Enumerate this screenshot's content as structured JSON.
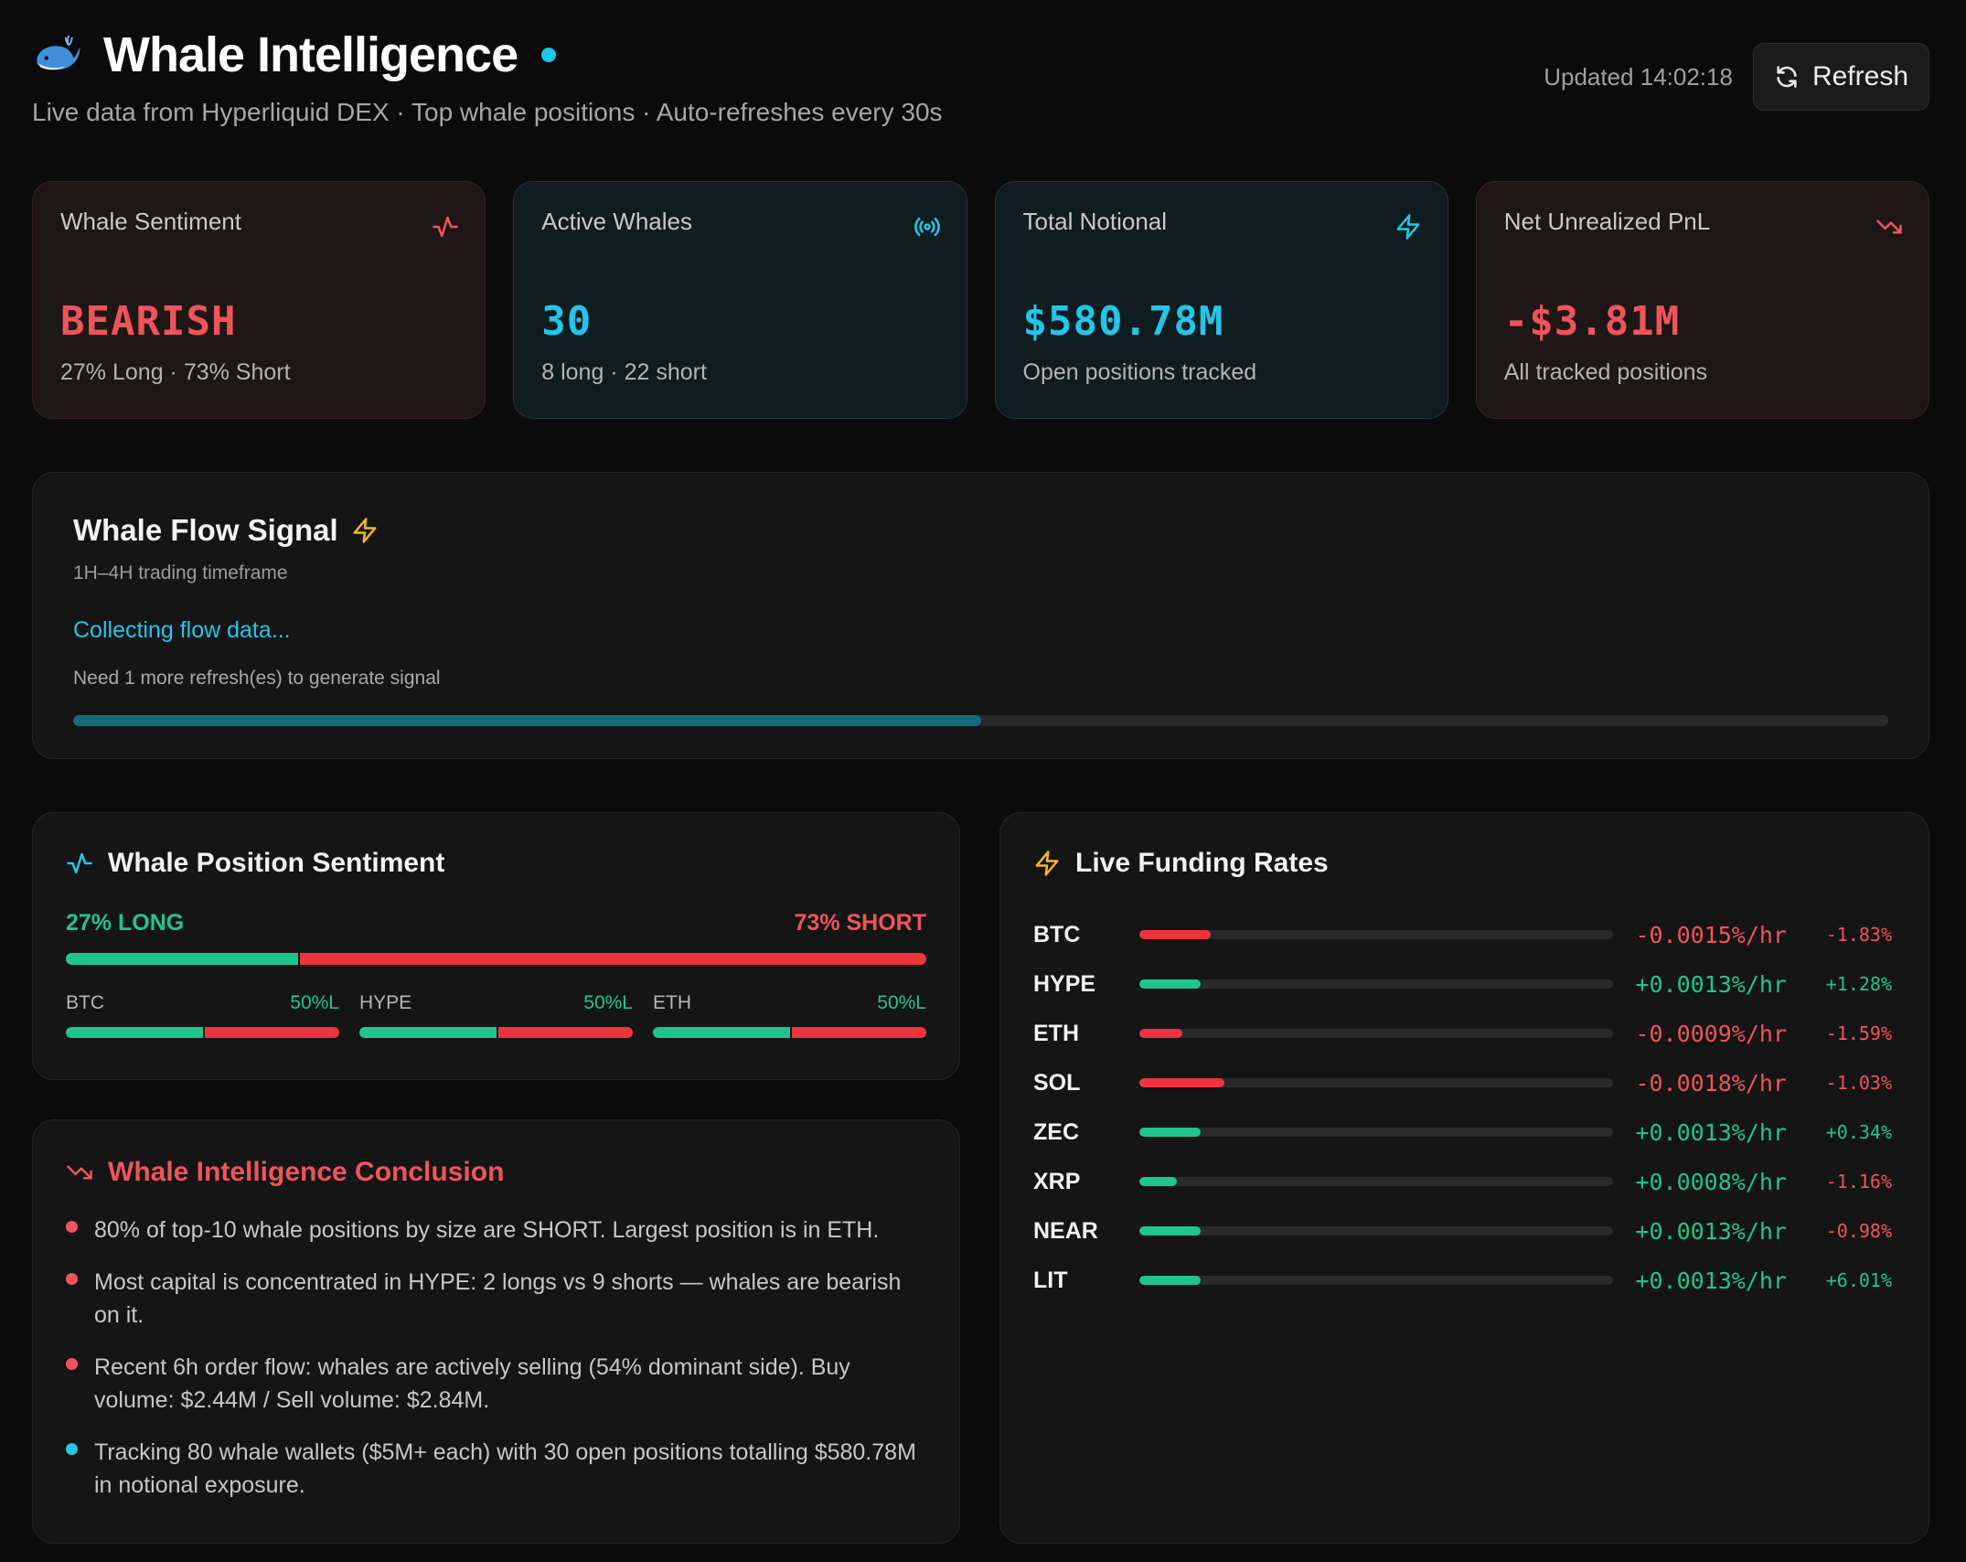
{
  "header": {
    "title": "Whale Intelligence",
    "subtitle": "Live data from Hyperliquid DEX · Top whale positions · Auto-refreshes every 30s",
    "updated": "Updated 14:02:18",
    "refresh_label": "Refresh"
  },
  "stats": [
    {
      "label": "Whale Sentiment",
      "value": "BEARISH",
      "sub": "27% Long · 73% Short",
      "icon": "activity-icon",
      "color": "#f0545b"
    },
    {
      "label": "Active Whales",
      "value": "30",
      "sub": "8 long · 22 short",
      "icon": "broadcast-icon",
      "color": "#23c6e8"
    },
    {
      "label": "Total Notional",
      "value": "$580.78M",
      "sub": "Open positions tracked",
      "icon": "lightning-icon",
      "color": "#23c6e8"
    },
    {
      "label": "Net Unrealized PnL",
      "value": "-$3.81M",
      "sub": "All tracked positions",
      "icon": "trending-down-icon",
      "color": "#f0545b"
    }
  ],
  "flow": {
    "title": "Whale Flow Signal",
    "timeframe": "1H–4H trading timeframe",
    "status": "Collecting flow data...",
    "need": "Need 1 more refresh(es) to generate signal",
    "progress": 0.5
  },
  "position_sentiment": {
    "title": "Whale Position Sentiment",
    "long_label": "27% LONG",
    "short_label": "73% SHORT",
    "long_fraction": 0.27,
    "coins": [
      {
        "name": "BTC",
        "pct_label": "50%L",
        "long_fraction": 0.5
      },
      {
        "name": "HYPE",
        "pct_label": "50%L",
        "long_fraction": 0.5
      },
      {
        "name": "ETH",
        "pct_label": "50%L",
        "long_fraction": 0.5
      }
    ]
  },
  "conclusion": {
    "title": "Whale Intelligence Conclusion",
    "items": [
      {
        "text": "80% of top-10 whale positions by size are SHORT. Largest position is in ETH.",
        "color": "#f0545b"
      },
      {
        "text": "Most capital is concentrated in HYPE: 2 longs vs 9 shorts — whales are bearish on it.",
        "color": "#f0545b"
      },
      {
        "text": "Recent 6h order flow: whales are actively selling (54% dominant side). Buy volume: $2.44M / Sell volume: $2.84M.",
        "color": "#f0545b"
      },
      {
        "text": "Tracking 80 whale wallets ($5M+ each) with 30 open positions totalling $580.78M in notional exposure.",
        "color": "#23c6e8"
      }
    ]
  },
  "funding": {
    "title": "Live Funding Rates",
    "rows": [
      {
        "coin": "BTC",
        "rate": "-0.0015%/hr",
        "change": "-1.83%",
        "fill": 0.15,
        "positive": false,
        "change_positive": false
      },
      {
        "coin": "HYPE",
        "rate": "+0.0013%/hr",
        "change": "+1.28%",
        "fill": 0.13,
        "positive": true,
        "change_positive": true
      },
      {
        "coin": "ETH",
        "rate": "-0.0009%/hr",
        "change": "-1.59%",
        "fill": 0.09,
        "positive": false,
        "change_positive": false
      },
      {
        "coin": "SOL",
        "rate": "-0.0018%/hr",
        "change": "-1.03%",
        "fill": 0.18,
        "positive": false,
        "change_positive": false
      },
      {
        "coin": "ZEC",
        "rate": "+0.0013%/hr",
        "change": "+0.34%",
        "fill": 0.13,
        "positive": true,
        "change_positive": true
      },
      {
        "coin": "XRP",
        "rate": "+0.0008%/hr",
        "change": "-1.16%",
        "fill": 0.08,
        "positive": true,
        "change_positive": false
      },
      {
        "coin": "NEAR",
        "rate": "+0.0013%/hr",
        "change": "-0.98%",
        "fill": 0.13,
        "positive": true,
        "change_positive": false
      },
      {
        "coin": "LIT",
        "rate": "+0.0013%/hr",
        "change": "+6.01%",
        "fill": 0.13,
        "positive": true,
        "change_positive": true
      }
    ]
  },
  "colors": {
    "green": "#1fc68b",
    "red": "#f0343f",
    "red_text": "#f0545b",
    "cyan": "#23c6e8",
    "amber": "#f5b820"
  }
}
